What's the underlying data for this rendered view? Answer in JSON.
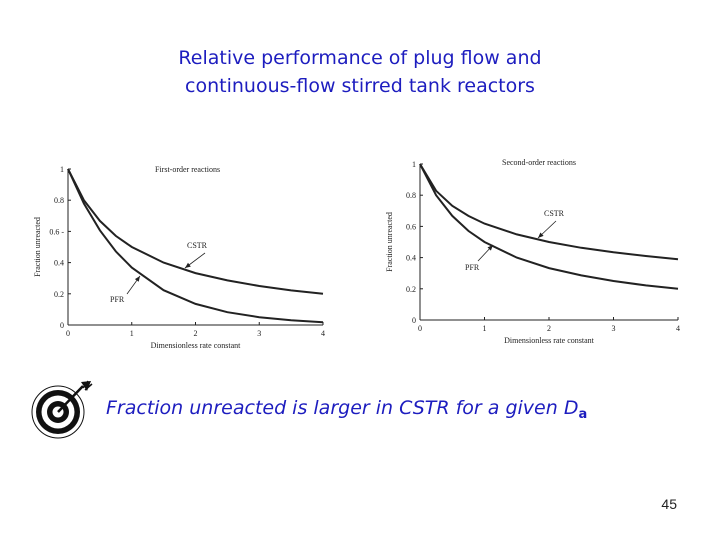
{
  "slide": {
    "title_line1": "Relative performance of plug flow and",
    "title_line2": "continuous-flow stirred tank reactors",
    "caption_main": "Fraction unreacted is larger in CSTR for a given D",
    "caption_sub": "a",
    "page_number": "45"
  },
  "icons": {
    "caption_icon": "bullseye-target-arrow-icon"
  },
  "colors": {
    "text_blue": "#1d1dbf",
    "curve": "#222222"
  },
  "chart_data": [
    {
      "type": "line",
      "title": "First-order reactions",
      "xlabel": "Dimensionless rate constant",
      "ylabel": "Fraction unreacted",
      "xlim": [
        0,
        4
      ],
      "ylim": [
        0,
        1
      ],
      "xticks": [
        "0",
        "1",
        "2",
        "3",
        "4"
      ],
      "yticks": [
        "0",
        "0.2",
        "0.4",
        "0.6 -",
        "0.8",
        "1"
      ],
      "series": [
        {
          "name": "CSTR",
          "x": [
            0,
            0.25,
            0.5,
            0.75,
            1,
            1.5,
            2,
            2.5,
            3,
            3.5,
            4
          ],
          "y": [
            1,
            0.8,
            0.667,
            0.571,
            0.5,
            0.4,
            0.333,
            0.286,
            0.25,
            0.222,
            0.2
          ]
        },
        {
          "name": "PFR",
          "x": [
            0,
            0.25,
            0.5,
            0.75,
            1,
            1.5,
            2,
            2.5,
            3,
            3.5,
            4
          ],
          "y": [
            1,
            0.779,
            0.607,
            0.472,
            0.368,
            0.223,
            0.135,
            0.082,
            0.05,
            0.03,
            0.018
          ]
        }
      ],
      "annotations": [
        "CSTR",
        "PFR"
      ],
      "grid": false
    },
    {
      "type": "line",
      "title": "Second-order reactions",
      "xlabel": "Dimensionless rate constant",
      "ylabel": "Fraction unreacted",
      "xlim": [
        0,
        4
      ],
      "ylim": [
        0,
        1
      ],
      "xticks": [
        "0",
        "1",
        "2",
        "3",
        "4"
      ],
      "yticks": [
        "0",
        "0.2",
        "0.4",
        "0.6",
        "0.8",
        "1"
      ],
      "series": [
        {
          "name": "CSTR",
          "x": [
            0,
            0.25,
            0.5,
            0.75,
            1,
            1.5,
            2,
            2.5,
            3,
            3.5,
            4
          ],
          "y": [
            1,
            0.828,
            0.732,
            0.667,
            0.618,
            0.549,
            0.5,
            0.463,
            0.434,
            0.41,
            0.39
          ]
        },
        {
          "name": "PFR",
          "x": [
            0,
            0.25,
            0.5,
            0.75,
            1,
            1.5,
            2,
            2.5,
            3,
            3.5,
            4
          ],
          "y": [
            1,
            0.8,
            0.667,
            0.571,
            0.5,
            0.4,
            0.333,
            0.286,
            0.25,
            0.222,
            0.2
          ]
        }
      ],
      "annotations": [
        "CSTR",
        "PFR"
      ],
      "grid": false
    }
  ]
}
